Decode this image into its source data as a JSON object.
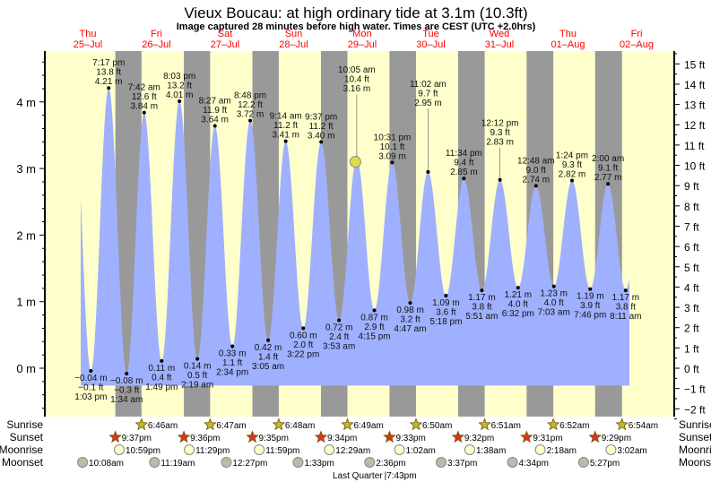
{
  "chart_data": {
    "type": "area",
    "title": "Vieux Boucau: at high  ordinary tide at 3.1m (10.3ft)",
    "subtitle": "Image captured 28 minutes before high water. Times are CEST (UTC +2.0hrs)",
    "ylabel_left_unit": "m",
    "ylabel_right_unit": "ft",
    "ylim_m": [
      -0.7,
      4.7
    ],
    "y_ticks_m": [
      "0 m",
      "1 m",
      "2 m",
      "3 m",
      "4 m"
    ],
    "y_ticks_ft": [
      "−2 ft",
      "−1 ft",
      "0 ft",
      "1 ft",
      "2 ft",
      "3 ft",
      "4 ft",
      "5 ft",
      "6 ft",
      "7 ft",
      "8 ft",
      "9 ft",
      "10 ft",
      "11 ft",
      "12 ft",
      "13 ft",
      "14 ft",
      "15 ft"
    ],
    "days": [
      {
        "dow": "Thu",
        "date": "25–Jul"
      },
      {
        "dow": "Fri",
        "date": "26–Jul"
      },
      {
        "dow": "Sat",
        "date": "27–Jul"
      },
      {
        "dow": "Sun",
        "date": "28–Jul"
      },
      {
        "dow": "Mon",
        "date": "29–Jul"
      },
      {
        "dow": "Tue",
        "date": "30–Jul"
      },
      {
        "dow": "Wed",
        "date": "31–Jul"
      },
      {
        "dow": "Thu",
        "date": "01–Aug"
      },
      {
        "dow": "Fri",
        "date": "02–Aug"
      }
    ],
    "tides": [
      {
        "type": "low",
        "day": 0,
        "time": "1:03 pm",
        "m": -0.04,
        "ft": "−0.1 ft",
        "ml": "−0.04 m"
      },
      {
        "type": "high",
        "day": 0,
        "time": "7:17 pm",
        "m": 4.21,
        "ft": "13.8 ft",
        "ml": "4.21 m"
      },
      {
        "type": "low",
        "day": 1,
        "time": "1:34 am",
        "m": -0.08,
        "ft": "−0.3 ft",
        "ml": "−0.08 m"
      },
      {
        "type": "high",
        "day": 1,
        "time": "7:42 am",
        "m": 3.84,
        "ft": "12.6 ft",
        "ml": "3.84 m"
      },
      {
        "type": "low",
        "day": 1,
        "time": "1:49 pm",
        "m": 0.11,
        "ft": "0.4 ft",
        "ml": "0.11 m"
      },
      {
        "type": "high",
        "day": 1,
        "time": "8:03 pm",
        "m": 4.01,
        "ft": "13.2 ft",
        "ml": "4.01 m"
      },
      {
        "type": "low",
        "day": 2,
        "time": "2:19 am",
        "m": 0.14,
        "ft": "0.5 ft",
        "ml": "0.14 m"
      },
      {
        "type": "high",
        "day": 2,
        "time": "8:27 am",
        "m": 3.64,
        "ft": "11.9 ft",
        "ml": "3.64 m"
      },
      {
        "type": "low",
        "day": 2,
        "time": "2:34 pm",
        "m": 0.33,
        "ft": "1.1 ft",
        "ml": "0.33 m"
      },
      {
        "type": "high",
        "day": 2,
        "time": "8:48 pm",
        "m": 3.72,
        "ft": "12.2 ft",
        "ml": "3.72 m"
      },
      {
        "type": "low",
        "day": 3,
        "time": "3:05 am",
        "m": 0.42,
        "ft": "1.4 ft",
        "ml": "0.42 m"
      },
      {
        "type": "high",
        "day": 3,
        "time": "9:14 am",
        "m": 3.41,
        "ft": "11.2 ft",
        "ml": "3.41 m"
      },
      {
        "type": "low",
        "day": 3,
        "time": "3:22 pm",
        "m": 0.6,
        "ft": "2.0 ft",
        "ml": "0.60 m"
      },
      {
        "type": "high",
        "day": 3,
        "time": "9:37 pm",
        "m": 3.4,
        "ft": "11.2 ft",
        "ml": "3.40 m"
      },
      {
        "type": "low",
        "day": 4,
        "time": "3:53 am",
        "m": 0.72,
        "ft": "2.4 ft",
        "ml": "0.72 m"
      },
      {
        "type": "high",
        "day": 4,
        "time": "10:05 am",
        "m": 3.16,
        "ft": "10.4 ft",
        "ml": "3.16 m"
      },
      {
        "type": "low",
        "day": 4,
        "time": "4:15 pm",
        "m": 0.87,
        "ft": "2.9 ft",
        "ml": "0.87 m"
      },
      {
        "type": "high",
        "day": 4,
        "time": "10:31 pm",
        "m": 3.09,
        "ft": "10.1 ft",
        "ml": "3.09 m"
      },
      {
        "type": "low",
        "day": 5,
        "time": "4:47 am",
        "m": 0.98,
        "ft": "3.2 ft",
        "ml": "0.98 m"
      },
      {
        "type": "high",
        "day": 5,
        "time": "11:02 am",
        "m": 2.95,
        "ft": "9.7 ft",
        "ml": "2.95 m"
      },
      {
        "type": "low",
        "day": 5,
        "time": "5:18 pm",
        "m": 1.09,
        "ft": "3.6 ft",
        "ml": "1.09 m"
      },
      {
        "type": "high",
        "day": 5,
        "time": "11:34 pm",
        "m": 2.85,
        "ft": "9.4 ft",
        "ml": "2.85 m"
      },
      {
        "type": "low",
        "day": 6,
        "time": "5:51 am",
        "m": 1.17,
        "ft": "3.8 ft",
        "ml": "1.17 m"
      },
      {
        "type": "high",
        "day": 6,
        "time": "12:12 pm",
        "m": 2.83,
        "ft": "9.3 ft",
        "ml": "2.83 m"
      },
      {
        "type": "low",
        "day": 6,
        "time": "6:32 pm",
        "m": 1.21,
        "ft": "4.0 ft",
        "ml": "1.21 m"
      },
      {
        "type": "high",
        "day": 7,
        "time": "12:48 am",
        "m": 2.74,
        "ft": "9.0 ft",
        "ml": "2.74 m"
      },
      {
        "type": "low",
        "day": 7,
        "time": "7:03 am",
        "m": 1.23,
        "ft": "4.0 ft",
        "ml": "1.23 m"
      },
      {
        "type": "high",
        "day": 7,
        "time": "1:24 pm",
        "m": 2.82,
        "ft": "9.3 ft",
        "ml": "2.82 m"
      },
      {
        "type": "low",
        "day": 7,
        "time": "7:46 pm",
        "m": 1.19,
        "ft": "3.9 ft",
        "ml": "1.19 m"
      },
      {
        "type": "high",
        "day": 8,
        "time": "2:00 am",
        "m": 2.77,
        "ft": "9.1 ft",
        "ml": "2.77 m"
      },
      {
        "type": "low",
        "day": 8,
        "time": "8:11 am",
        "m": 1.17,
        "ft": "3.8 ft",
        "ml": "1.17 m"
      }
    ],
    "current": {
      "day": 4,
      "time": "9:37 am",
      "m": 3.1
    },
    "sunrise": {
      "label": "Sunrise",
      "times": [
        [
          1,
          "6:46am"
        ],
        [
          2,
          "6:47am"
        ],
        [
          3,
          "6:48am"
        ],
        [
          4,
          "6:49am"
        ],
        [
          5,
          "6:50am"
        ],
        [
          6,
          "6:51am"
        ],
        [
          7,
          "6:52am"
        ],
        [
          8,
          "6:54am"
        ]
      ]
    },
    "sunset": {
      "label": "Sunset",
      "times": [
        [
          0,
          "9:37pm"
        ],
        [
          1,
          "9:36pm"
        ],
        [
          2,
          "9:35pm"
        ],
        [
          3,
          "9:34pm"
        ],
        [
          4,
          "9:33pm"
        ],
        [
          5,
          "9:32pm"
        ],
        [
          6,
          "9:31pm"
        ],
        [
          7,
          "9:29pm"
        ]
      ]
    },
    "moonrise": {
      "label": "Moonrise",
      "times": [
        [
          0,
          "10:59pm"
        ],
        [
          1,
          "11:29pm"
        ],
        [
          2,
          "11:59pm"
        ],
        [
          4,
          "12:29am"
        ],
        [
          5,
          "1:02am"
        ],
        [
          6,
          "1:38am"
        ],
        [
          7,
          "2:18am"
        ],
        [
          8,
          "3:02am"
        ]
      ]
    },
    "moonset": {
      "label": "Moonset",
      "times": [
        [
          0,
          "10:08am"
        ],
        [
          1,
          "11:19am"
        ],
        [
          2,
          "12:27pm"
        ],
        [
          3,
          "1:33pm"
        ],
        [
          4,
          "2:36pm"
        ],
        [
          5,
          "3:37pm"
        ],
        [
          6,
          "4:34pm"
        ],
        [
          7,
          "5:27pm"
        ]
      ]
    },
    "moon_phase": {
      "label": "Last Quarter",
      "day": 4,
      "time": "7:43pm"
    },
    "colors": {
      "day": "#ffffcc",
      "night": "#999999",
      "water": "#9fb0ff",
      "daylabel": "#ff0000",
      "sunrise": "#bbbb33",
      "sunset": "#dd3322",
      "moonrise": "#ffffcc",
      "moonset": "#bbbbaa",
      "marker": "#dddd44"
    }
  }
}
